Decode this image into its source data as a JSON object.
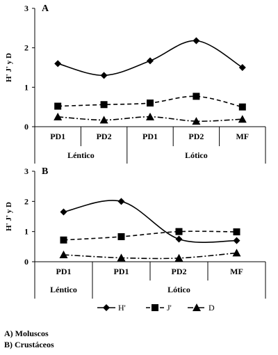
{
  "chart_data": [
    {
      "type": "line",
      "panel_label": "A",
      "ylabel": "H' J' y D",
      "ylim": [
        0,
        3
      ],
      "yticks": [
        "0",
        "1",
        "2",
        "3"
      ],
      "categories": [
        "PD1",
        "PD2",
        "PD1",
        "PD2",
        "MF"
      ],
      "groups": [
        {
          "label": "Léntico",
          "span": 2
        },
        {
          "label": "Lótico",
          "span": 3
        }
      ],
      "series": [
        {
          "name": "H'",
          "marker": "diamond",
          "dash": "solid",
          "values": [
            1.6,
            1.3,
            1.67,
            2.18,
            1.5
          ]
        },
        {
          "name": "J'",
          "marker": "square",
          "dash": "dashed",
          "values": [
            0.52,
            0.56,
            0.6,
            0.77,
            0.5
          ]
        },
        {
          "name": "D",
          "marker": "triangle",
          "dash": "dashdot",
          "values": [
            0.25,
            0.17,
            0.25,
            0.14,
            0.19
          ]
        }
      ]
    },
    {
      "type": "line",
      "panel_label": "B",
      "ylabel": "H' J' y D",
      "ylim": [
        0,
        3
      ],
      "yticks": [
        "0",
        "1",
        "2",
        "3"
      ],
      "categories": [
        "PD1",
        "PD1",
        "PD2",
        "MF"
      ],
      "groups": [
        {
          "label": "Léntico",
          "span": 1
        },
        {
          "label": "Lótico",
          "span": 3
        }
      ],
      "series": [
        {
          "name": "H'",
          "marker": "diamond",
          "dash": "solid",
          "values": [
            1.65,
            2.0,
            0.75,
            0.7
          ]
        },
        {
          "name": "J'",
          "marker": "square",
          "dash": "dashed",
          "values": [
            0.72,
            0.83,
            1.0,
            0.99
          ]
        },
        {
          "name": "D",
          "marker": "triangle",
          "dash": "dashdot",
          "values": [
            0.23,
            0.13,
            0.12,
            0.29
          ]
        }
      ]
    }
  ],
  "legend": [
    {
      "name": "H'",
      "marker": "diamond",
      "dash": "solid"
    },
    {
      "name": "J'",
      "marker": "square",
      "dash": "dashed"
    },
    {
      "name": "D",
      "marker": "triangle",
      "dash": "dashdot"
    }
  ],
  "captions": {
    "a": "A)  Moluscos",
    "b": "B)  Crustáceos"
  }
}
